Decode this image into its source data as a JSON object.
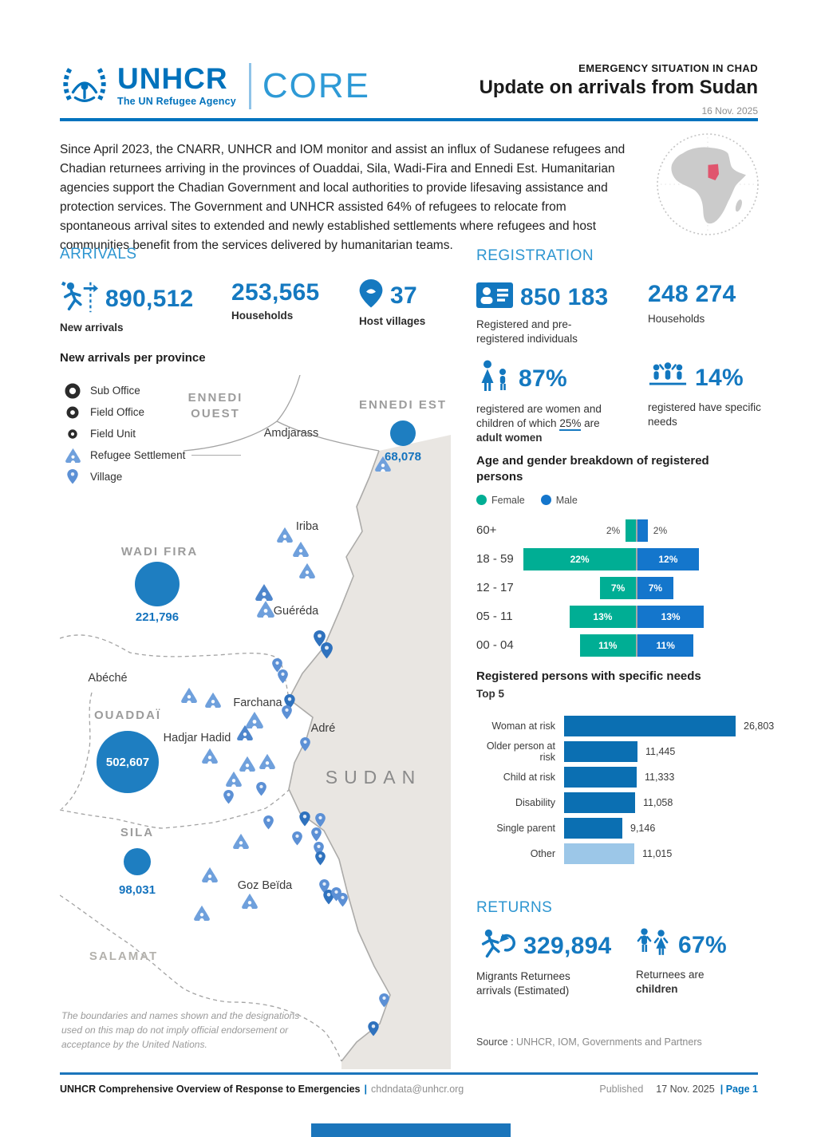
{
  "colors": {
    "unhcr_blue": "#0072BC",
    "heading_blue": "#2E96D1",
    "number_blue": "#1579C0",
    "female_teal": "#00AE94",
    "male_blue": "#1476CC",
    "bar_blue": "#0B6FB2",
    "bar_light_blue": "#9CC7E8",
    "bubble_blue": "#1E7EC1",
    "chad_highlight_red": "#E0556E",
    "sudan_gray": "#E9E6E2"
  },
  "header": {
    "logo_word": "UNHCR",
    "logo_tagline": "The UN Refugee Agency",
    "core": "CORE",
    "kicker": "EMERGENCY SITUATION IN CHAD",
    "title": "Update on arrivals from Sudan",
    "date": "16 Nov. 2025"
  },
  "intro": {
    "text": "Since April 2023, the CNARR, UNHCR and IOM monitor and assist an influx of Sudanese refugees and Chadian returnees arriving in the provinces of Ouaddai, Sila, Wadi-Fira and Ennedi Est. Humanitarian agencies support the Chadian Government and local authorities to provide lifesaving assistance and protection services. The Government and UNHCR assisted 64% of refugees to relocate from spontaneous arrival sites to extended and newly established settlements where refugees and host communities benefit from the services delivered by humanitarian teams."
  },
  "arrivals": {
    "heading": "ARRIVALS",
    "stats": [
      {
        "value": "890,512",
        "label": "New arrivals",
        "icon": "running-person-arrival-icon"
      },
      {
        "value": "253,565",
        "label": "Households",
        "icon": null
      },
      {
        "value": "37",
        "label": "Host villages",
        "icon": "map-pin-icon"
      }
    ],
    "map": {
      "title": "New arrivals per province",
      "legend": [
        {
          "label": "Sub Office",
          "icon": "sub-office-icon"
        },
        {
          "label": "Field Office",
          "icon": "field-office-icon"
        },
        {
          "label": "Field Unit",
          "icon": "field-unit-icon"
        },
        {
          "label": "Refugee Settlement",
          "icon": "refugee-settlement-icon"
        },
        {
          "label": "Village",
          "icon": "village-icon"
        }
      ],
      "provinces": [
        {
          "name": "ENNEDI OUEST",
          "line1": "ENNEDI",
          "line2": "OUEST"
        },
        {
          "name": "ENNEDI EST",
          "value": "68,078"
        },
        {
          "name": "WADI FIRA",
          "value": "221,796"
        },
        {
          "name": "OUADDAÏ",
          "value": "502,607"
        },
        {
          "name": "SILA",
          "value": "98,031"
        },
        {
          "name": "SALAMAT"
        }
      ],
      "towns": {
        "amdjarass": "Amdjarass",
        "iriba": "Iriba",
        "guereda": "Guéréda",
        "abeche": "Abéché",
        "farchana": "Farchana",
        "hadjar_hadid": "Hadjar Hadid",
        "adre": "Adré",
        "goz_beida": "Goz Beïda"
      },
      "neighbor_country": "SUDAN",
      "disclaimer": "The boundaries and names shown and the designations used on this map do not imply official endorsement or acceptance by the United Nations."
    }
  },
  "registration": {
    "heading": "REGISTRATION",
    "individuals": {
      "value": "850 183",
      "label": "Registered and pre-registered individuals"
    },
    "households": {
      "value": "248 274",
      "label": "Households"
    },
    "women_children": {
      "value": "87%",
      "label_pre": "registered are women and children of which ",
      "label_underline": "25%",
      "label_mid": " are ",
      "label_bold": "adult women"
    },
    "specific_needs": {
      "value": "14%",
      "label": "registered have specific needs"
    }
  },
  "chart_data": [
    {
      "type": "bar",
      "orientation": "population-pyramid",
      "title": "Age and gender breakdown of registered persons",
      "categories": [
        "60+",
        "18 - 59",
        "12 - 17",
        "05 - 11",
        "00 - 04"
      ],
      "series": [
        {
          "name": "Female",
          "color": "#00AE94",
          "values": [
            2,
            22,
            7,
            13,
            11
          ]
        },
        {
          "name": "Male",
          "color": "#1476CC",
          "values": [
            2,
            12,
            7,
            13,
            11
          ]
        }
      ],
      "value_suffix": "%",
      "legend_position": "top"
    },
    {
      "type": "bar",
      "orientation": "horizontal",
      "title": "Registered persons with specific needs",
      "subtitle": "Top 5",
      "categories": [
        "Woman at risk",
        "Older person at risk",
        "Child at risk",
        "Disability",
        "Single parent",
        "Other"
      ],
      "values": [
        26803,
        11445,
        11333,
        11058,
        9146,
        11015
      ],
      "labels": [
        "26,803",
        "11,445",
        "11,333",
        "11,058",
        "9,146",
        "11,015"
      ],
      "bar_colors": [
        "#0B6FB2",
        "#0B6FB2",
        "#0B6FB2",
        "#0B6FB2",
        "#0B6FB2",
        "#9CC7E8"
      ],
      "xmax": 26803
    }
  ],
  "returns": {
    "heading": "RETURNS",
    "migrants": {
      "value": "329,894",
      "label_line1": "Migrants Returnees",
      "label_line2": "arrivals (Estimated)"
    },
    "children": {
      "value": "67%",
      "label_pre": "Returnees are ",
      "label_bold": "children"
    },
    "source_label": "Source :",
    "source": " UNHCR, IOM, Governments and Partners"
  },
  "footer": {
    "org": "UNHCR Comprehensive Overview of Response to Emergencies",
    "separator": "|",
    "email": "chdndata@unhcr.org",
    "published_label": "Published",
    "published_date": "17 Nov. 2025",
    "page": "| Page 1"
  }
}
